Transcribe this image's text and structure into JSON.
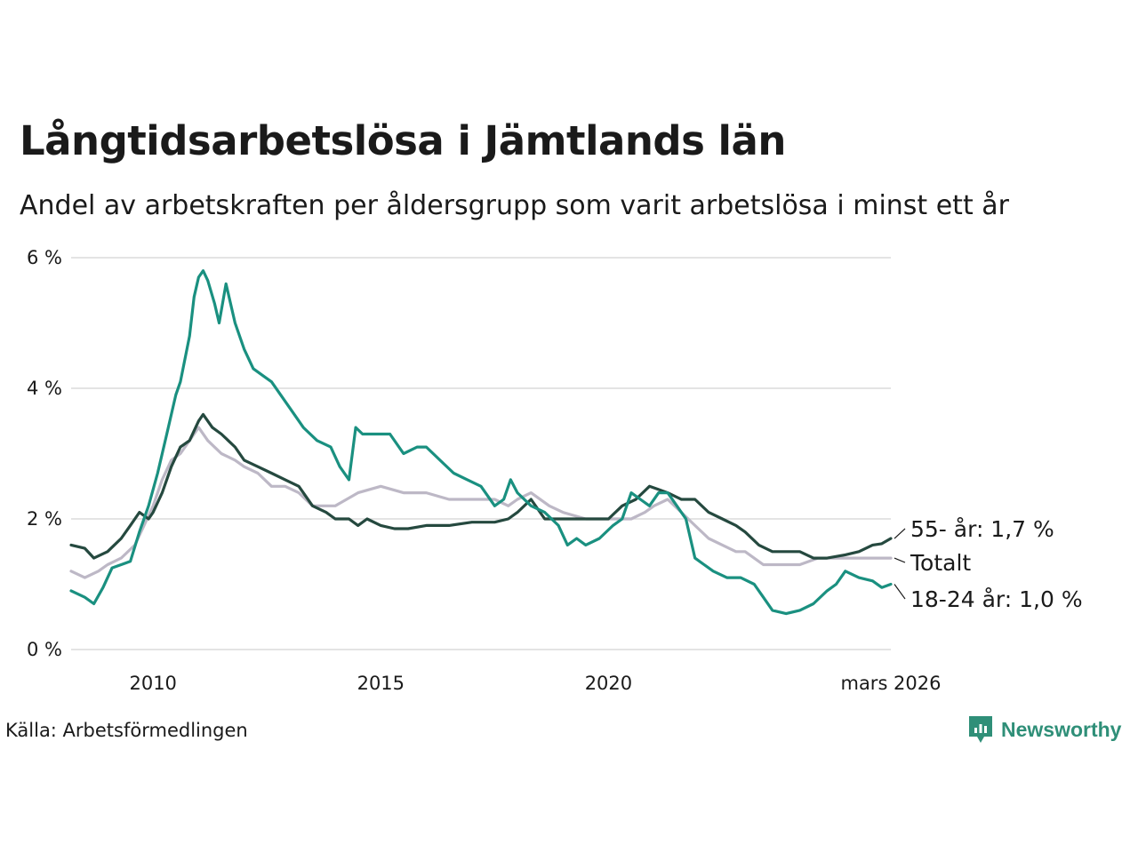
{
  "title": "Långtidsarbetslösa i Jämtlands län",
  "subtitle": "Andel av arbetskraften per åldersgrupp som varit arbetslösa i minst ett år",
  "source": "Källa: Arbetsförmedlingen",
  "brand": {
    "name": "Newsworthy",
    "icon": "newsworthy-logo-icon",
    "color": "#2f8f78"
  },
  "chart_data": {
    "type": "line",
    "xlim": [
      2008.2,
      2026.2
    ],
    "ylim": [
      0,
      6
    ],
    "grid": true,
    "yticks": [
      {
        "value": 0,
        "label": "0 %"
      },
      {
        "value": 2,
        "label": "2 %"
      },
      {
        "value": 4,
        "label": "4 %"
      },
      {
        "value": 6,
        "label": "6 %"
      }
    ],
    "xticks": [
      {
        "value": 2010,
        "label": "2010"
      },
      {
        "value": 2015,
        "label": "2015"
      },
      {
        "value": 2020,
        "label": "2020"
      },
      {
        "value": 2026.2,
        "label": "mars 2026"
      }
    ],
    "series": [
      {
        "name": "Totalt",
        "label": "Totalt",
        "color": "#bdb8c6",
        "x": [
          2008.2,
          2008.5,
          2008.8,
          2009.0,
          2009.3,
          2009.6,
          2009.8,
          2010.0,
          2010.2,
          2010.4,
          2010.6,
          2010.8,
          2011.0,
          2011.2,
          2011.5,
          2011.8,
          2012.0,
          2012.3,
          2012.6,
          2012.9,
          2013.2,
          2013.5,
          2014.0,
          2014.5,
          2015.0,
          2015.5,
          2016.0,
          2016.5,
          2017.0,
          2017.5,
          2017.8,
          2018.0,
          2018.3,
          2018.7,
          2019.0,
          2019.5,
          2020.0,
          2020.5,
          2020.8,
          2021.0,
          2021.3,
          2021.6,
          2021.9,
          2022.2,
          2022.5,
          2022.8,
          2023.0,
          2023.4,
          2023.8,
          2024.2,
          2024.6,
          2025.0,
          2025.5,
          2026.2
        ],
        "values": [
          1.2,
          1.1,
          1.2,
          1.3,
          1.4,
          1.6,
          1.9,
          2.2,
          2.6,
          2.9,
          3.0,
          3.2,
          3.4,
          3.2,
          3.0,
          2.9,
          2.8,
          2.7,
          2.5,
          2.5,
          2.4,
          2.2,
          2.2,
          2.4,
          2.5,
          2.4,
          2.4,
          2.3,
          2.3,
          2.3,
          2.2,
          2.3,
          2.4,
          2.2,
          2.1,
          2.0,
          2.0,
          2.0,
          2.1,
          2.2,
          2.3,
          2.1,
          1.9,
          1.7,
          1.6,
          1.5,
          1.5,
          1.3,
          1.3,
          1.3,
          1.4,
          1.4,
          1.4,
          1.4
        ]
      },
      {
        "name": "55- år",
        "label": "55- år: 1,7 %",
        "color": "#25493f",
        "x": [
          2008.2,
          2008.5,
          2008.7,
          2009.0,
          2009.3,
          2009.5,
          2009.7,
          2009.9,
          2010.0,
          2010.2,
          2010.4,
          2010.6,
          2010.8,
          2011.0,
          2011.1,
          2011.3,
          2011.5,
          2011.8,
          2012.0,
          2012.3,
          2012.6,
          2012.9,
          2013.2,
          2013.5,
          2013.8,
          2014.0,
          2014.3,
          2014.5,
          2014.7,
          2015.0,
          2015.3,
          2015.6,
          2016.0,
          2016.5,
          2017.0,
          2017.5,
          2017.8,
          2018.0,
          2018.3,
          2018.6,
          2019.0,
          2019.5,
          2020.0,
          2020.3,
          2020.6,
          2020.9,
          2021.1,
          2021.3,
          2021.6,
          2021.9,
          2022.2,
          2022.5,
          2022.8,
          2023.0,
          2023.3,
          2023.6,
          2023.9,
          2024.2,
          2024.5,
          2024.8,
          2025.2,
          2025.5,
          2025.8,
          2026.0,
          2026.2
        ],
        "values": [
          1.6,
          1.55,
          1.4,
          1.5,
          1.7,
          1.9,
          2.1,
          2.0,
          2.1,
          2.4,
          2.8,
          3.1,
          3.2,
          3.5,
          3.6,
          3.4,
          3.3,
          3.1,
          2.9,
          2.8,
          2.7,
          2.6,
          2.5,
          2.2,
          2.1,
          2.0,
          2.0,
          1.9,
          2.0,
          1.9,
          1.85,
          1.85,
          1.9,
          1.9,
          1.95,
          1.95,
          2.0,
          2.1,
          2.3,
          2.0,
          2.0,
          2.0,
          2.0,
          2.2,
          2.3,
          2.5,
          2.45,
          2.4,
          2.3,
          2.3,
          2.1,
          2.0,
          1.9,
          1.8,
          1.6,
          1.5,
          1.5,
          1.5,
          1.4,
          1.4,
          1.45,
          1.5,
          1.6,
          1.62,
          1.7
        ]
      },
      {
        "name": "18-24 år",
        "label": "18-24 år: 1,0 %",
        "color": "#1a9080",
        "x": [
          2008.2,
          2008.5,
          2008.7,
          2008.9,
          2009.1,
          2009.3,
          2009.5,
          2009.7,
          2009.9,
          2010.1,
          2010.3,
          2010.5,
          2010.6,
          2010.8,
          2010.9,
          2011.0,
          2011.1,
          2011.2,
          2011.35,
          2011.45,
          2011.6,
          2011.8,
          2012.0,
          2012.2,
          2012.4,
          2012.6,
          2012.8,
          2013.0,
          2013.3,
          2013.6,
          2013.9,
          2014.1,
          2014.3,
          2014.45,
          2014.6,
          2014.9,
          2015.2,
          2015.5,
          2015.8,
          2016.0,
          2016.3,
          2016.6,
          2016.9,
          2017.2,
          2017.5,
          2017.7,
          2017.85,
          2018.0,
          2018.3,
          2018.6,
          2018.9,
          2019.1,
          2019.3,
          2019.5,
          2019.8,
          2020.1,
          2020.3,
          2020.5,
          2020.7,
          2020.9,
          2021.1,
          2021.3,
          2021.5,
          2021.7,
          2021.9,
          2022.1,
          2022.3,
          2022.6,
          2022.9,
          2023.2,
          2023.4,
          2023.6,
          2023.9,
          2024.2,
          2024.5,
          2024.8,
          2025.0,
          2025.2,
          2025.5,
          2025.8,
          2026.0,
          2026.2
        ],
        "values": [
          0.9,
          0.8,
          0.7,
          0.95,
          1.25,
          1.3,
          1.35,
          1.8,
          2.2,
          2.7,
          3.3,
          3.9,
          4.1,
          4.8,
          5.4,
          5.7,
          5.8,
          5.65,
          5.3,
          5.0,
          5.6,
          5.0,
          4.6,
          4.3,
          4.2,
          4.1,
          3.9,
          3.7,
          3.4,
          3.2,
          3.1,
          2.8,
          2.6,
          3.4,
          3.3,
          3.3,
          3.3,
          3.0,
          3.1,
          3.1,
          2.9,
          2.7,
          2.6,
          2.5,
          2.2,
          2.3,
          2.6,
          2.4,
          2.2,
          2.1,
          1.9,
          1.6,
          1.7,
          1.6,
          1.7,
          1.9,
          2.0,
          2.4,
          2.3,
          2.2,
          2.4,
          2.4,
          2.2,
          2.0,
          1.4,
          1.3,
          1.2,
          1.1,
          1.1,
          1.0,
          0.8,
          0.6,
          0.55,
          0.6,
          0.7,
          0.9,
          1.0,
          1.2,
          1.1,
          1.05,
          0.95,
          1.0
        ]
      }
    ]
  }
}
